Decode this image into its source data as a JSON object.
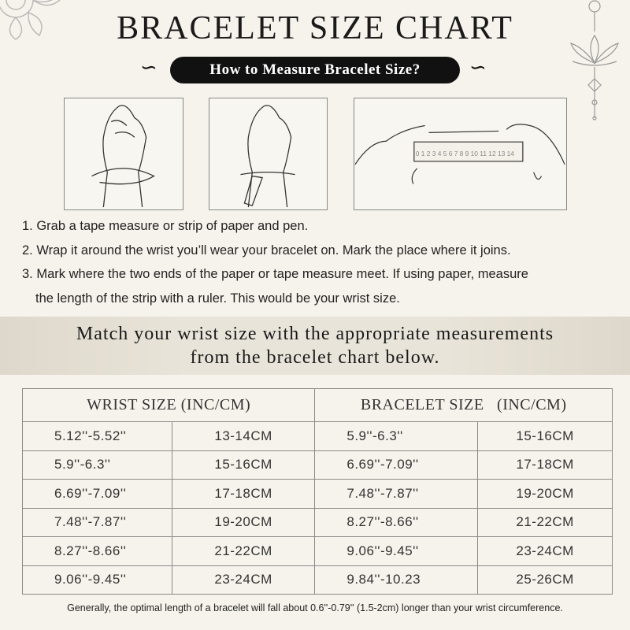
{
  "title": "BRACELET SIZE CHART",
  "subtitle": "How to Measure Bracelet Size?",
  "ruler_numbers": [
    "0",
    "1",
    "2",
    "3",
    "4",
    "5",
    "6",
    "7",
    "8",
    "9",
    "10",
    "11",
    "12",
    "13",
    "14"
  ],
  "steps": [
    "1. Grab a tape measure or strip of paper and pen.",
    "2. Wrap it around the wrist you’ll wear your bracelet on. Mark the place where it joins.",
    "3. Mark where the two ends of the paper or tape measure meet. If using paper, measure",
    "the length of the strip with a ruler. This would be your wrist size."
  ],
  "band": {
    "line1": "Match your wrist size with the appropriate measurements",
    "line2": "from the bracelet chart below."
  },
  "table": {
    "headers": [
      "WRIST SIZE (INC/CM)",
      "BRACELET SIZE   (INC/CM)"
    ],
    "rows": [
      [
        "5.12''-5.52''",
        "13-14CM",
        "5.9''-6.3''",
        "15-16CM"
      ],
      [
        "5.9''-6.3''",
        "15-16CM",
        "6.69''-7.09''",
        "17-18CM"
      ],
      [
        "6.69''-7.09''",
        "17-18CM",
        "7.48''-7.87''",
        "19-20CM"
      ],
      [
        "7.48''-7.87''",
        "19-20CM",
        "8.27''-8.66''",
        "21-22CM"
      ],
      [
        "8.27''-8.66''",
        "21-22CM",
        "9.06''-9.45''",
        "23-24CM"
      ],
      [
        "9.06''-9.45''",
        "23-24CM",
        "9.84''-10.23",
        "25-26CM"
      ]
    ]
  },
  "note": "Generally, the optimal length of a bracelet will fall about 0.6''-0.79'' (1.5-2cm) longer than your wrist circumference."
}
